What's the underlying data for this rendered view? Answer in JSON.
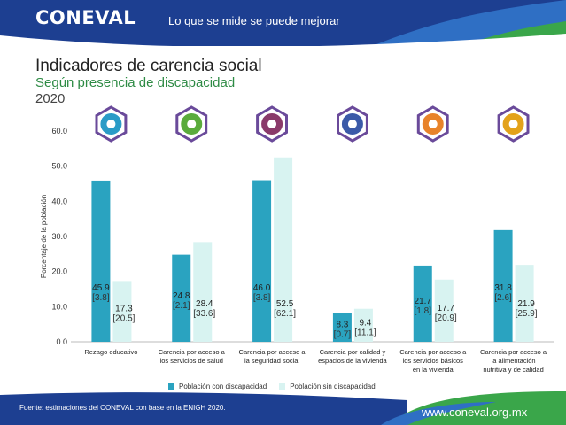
{
  "header": {
    "logo": "CONEVAL",
    "slogan": "Lo que se mide se puede mejorar"
  },
  "title": "Indicadores de carencia social",
  "subtitle": "Según presencia de discapacidad",
  "year": "2020",
  "colors": {
    "header_blue": "#1d3f91",
    "header_wave_light": "#2f6fc4",
    "header_wave_green": "#3aa64a",
    "series_with": "#2aa3c0",
    "series_without": "#d8f3f1",
    "icon_border": "#6a4a9a"
  },
  "chart_data": {
    "type": "bar",
    "ylabel": "Porcentaje de la población",
    "ylim": [
      0,
      60
    ],
    "yticks": [
      "0.0",
      "10.0",
      "20.0",
      "30.0",
      "40.0",
      "50.0",
      "60.0"
    ],
    "categories": [
      [
        "Rezago educativo"
      ],
      [
        "Carencia por acceso a",
        "los servicios de salud"
      ],
      [
        "Carencia por acceso a",
        "la seguridad social"
      ],
      [
        "Carencia por calidad y",
        "espacios de la vivienda"
      ],
      [
        "Carencia por acceso a",
        "los servicios básicos",
        "en la vivienda"
      ],
      [
        "Carencia por acceso a",
        "la alimentación",
        "nutritiva y de calidad"
      ]
    ],
    "icons": [
      {
        "name": "education-icon",
        "color": "#2a9bc7"
      },
      {
        "name": "health-icon",
        "color": "#5aab3c"
      },
      {
        "name": "social-security-icon",
        "color": "#8a3a6a"
      },
      {
        "name": "housing-icon",
        "color": "#3b5aa8"
      },
      {
        "name": "basic-services-icon",
        "color": "#e8832a"
      },
      {
        "name": "food-icon",
        "color": "#e3a21a"
      }
    ],
    "series": [
      {
        "name": "Población con discapacidad",
        "values": [
          45.9,
          24.8,
          46.0,
          8.3,
          21.7,
          31.8
        ],
        "value_labels": [
          "45.9",
          "24.8",
          "46.0",
          "8.3",
          "21.7",
          "31.8"
        ],
        "bracket_labels": [
          "[3.8]",
          "[2.1]",
          "[3.8]",
          "[0.7]",
          "[1.8]",
          "[2.6]"
        ]
      },
      {
        "name": "Población sin discapacidad",
        "values": [
          17.3,
          28.4,
          52.5,
          9.4,
          17.7,
          21.9
        ],
        "value_labels": [
          "17.3",
          "28.4",
          "52.5",
          "9.4",
          "17.7",
          "21.9"
        ],
        "bracket_labels": [
          "[20.5]",
          "[33.6]",
          "[62.1]",
          "[11.1]",
          "[20.9]",
          "[25.9]"
        ]
      }
    ],
    "legend_position": "bottom"
  },
  "footer": {
    "source": "Fuente: estimaciones del CONEVAL con base en la ENIGH 2020.",
    "site": "www.coneval.org.mx"
  }
}
